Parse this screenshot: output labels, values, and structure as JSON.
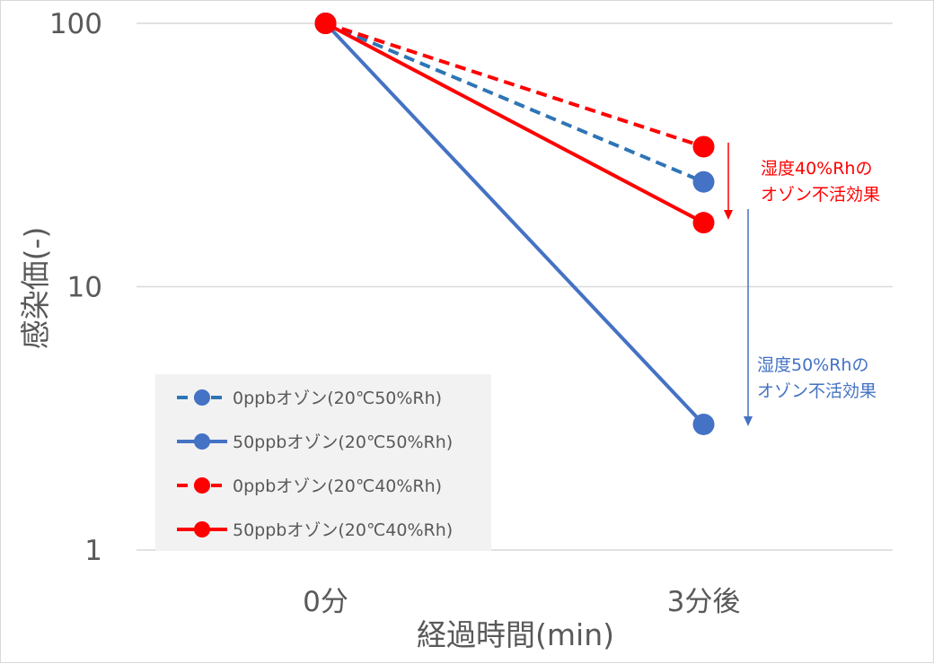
{
  "chart_data": {
    "type": "line",
    "y_scale": "log",
    "ylim": [
      1,
      100
    ],
    "y_ticks": [
      "1",
      "10",
      "100"
    ],
    "grid": true,
    "categories": [
      "0分",
      "3分後"
    ],
    "xlabel": "経過時間(min)",
    "ylabel": "感染価(-)",
    "legend_position": "bottom-left",
    "series": [
      {
        "name": "0ppbオゾン(20℃50%Rh)",
        "values": [
          100,
          25
        ],
        "color": "#2E75B6",
        "dash": true,
        "marker_color": "#4472C4"
      },
      {
        "name": "50ppbオゾン(20℃50%Rh)",
        "values": [
          100,
          3
        ],
        "color": "#4472C4",
        "dash": false,
        "marker_color": "#4472C4"
      },
      {
        "name": "0ppbオゾン(20℃40%Rh)",
        "values": [
          100,
          34
        ],
        "color": "#FF0000",
        "dash": true,
        "marker_color": "#FF0000"
      },
      {
        "name": "50ppbオゾン(20℃40%Rh)",
        "values": [
          100,
          17.5
        ],
        "color": "#FF0000",
        "dash": false,
        "marker_color": "#FF0000"
      }
    ],
    "annotations": [
      {
        "lines": [
          "湿度40%Rhの",
          "オゾン不活効果"
        ],
        "color": "#FF0000"
      },
      {
        "lines": [
          "湿度50%Rhの",
          "オゾン不活効果"
        ],
        "color": "#4472C4"
      }
    ]
  }
}
